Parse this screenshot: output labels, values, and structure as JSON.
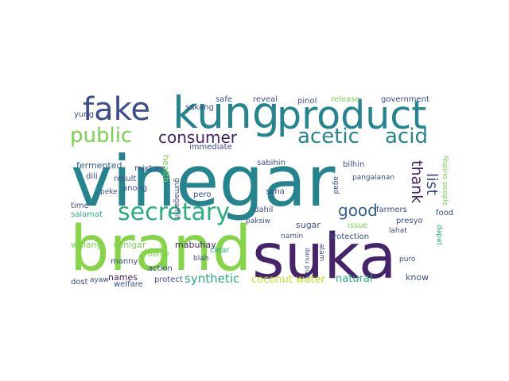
{
  "colors": {
    "purple": "#45246c",
    "indigo": "#3b4d8a",
    "slate": "#35608d",
    "teal": "#25858e",
    "green": "#1fa387",
    "sea": "#2aae80",
    "lime": "#86d549",
    "chartreuse": "#7ad151",
    "yellow": "#c5e021"
  },
  "words": [
    {
      "text": "vinegar"
    },
    {
      "text": "brand"
    },
    {
      "text": "suka"
    },
    {
      "text": "kung"
    },
    {
      "text": "product"
    },
    {
      "text": "fake"
    },
    {
      "text": "secretary"
    },
    {
      "text": "acetic"
    },
    {
      "text": "acid"
    },
    {
      "text": "public"
    },
    {
      "text": "consumer"
    },
    {
      "text": "good"
    },
    {
      "text": "thank"
    },
    {
      "text": "list"
    },
    {
      "text": "synthetic"
    },
    {
      "text": "coconut water"
    },
    {
      "text": "natural"
    },
    {
      "text": "fermented"
    },
    {
      "text": "walang"
    },
    {
      "text": "venigar"
    },
    {
      "text": "mabuhay"
    },
    {
      "text": "names"
    },
    {
      "text": "action"
    },
    {
      "text": "welfare"
    },
    {
      "text": "protect"
    },
    {
      "text": "dost"
    },
    {
      "text": "ayaw"
    },
    {
      "text": "manny"
    },
    {
      "text": "better"
    },
    {
      "text": "peke"
    },
    {
      "text": "result"
    },
    {
      "text": "time"
    },
    {
      "text": "salamat"
    },
    {
      "text": "dili"
    },
    {
      "text": "mixture"
    },
    {
      "text": "immediate"
    },
    {
      "text": "safe"
    },
    {
      "text": "sukang"
    },
    {
      "text": "reveal"
    },
    {
      "text": "pinol"
    },
    {
      "text": "release"
    },
    {
      "text": "government"
    },
    {
      "text": "yung"
    },
    {
      "text": "health"
    },
    {
      "text": "gumagamit"
    },
    {
      "text": "anong"
    },
    {
      "text": "pero"
    },
    {
      "text": "blah"
    },
    {
      "text": "clear"
    },
    {
      "text": "sabihin"
    },
    {
      "text": "sana"
    },
    {
      "text": "dahil"
    },
    {
      "text": "paksiw"
    },
    {
      "text": "sugar"
    },
    {
      "text": "issue"
    },
    {
      "text": "protection"
    },
    {
      "text": "namin"
    },
    {
      "text": "alam"
    },
    {
      "text": "agad"
    },
    {
      "text": "bilhin"
    },
    {
      "text": "pangalanan"
    },
    {
      "text": "presyo"
    },
    {
      "text": "farmers"
    },
    {
      "text": "lahat"
    },
    {
      "text": "filipino people"
    },
    {
      "text": "dapat"
    },
    {
      "text": "food"
    },
    {
      "text": "puro"
    },
    {
      "text": "know"
    },
    {
      "text": "danu puti"
    }
  ]
}
